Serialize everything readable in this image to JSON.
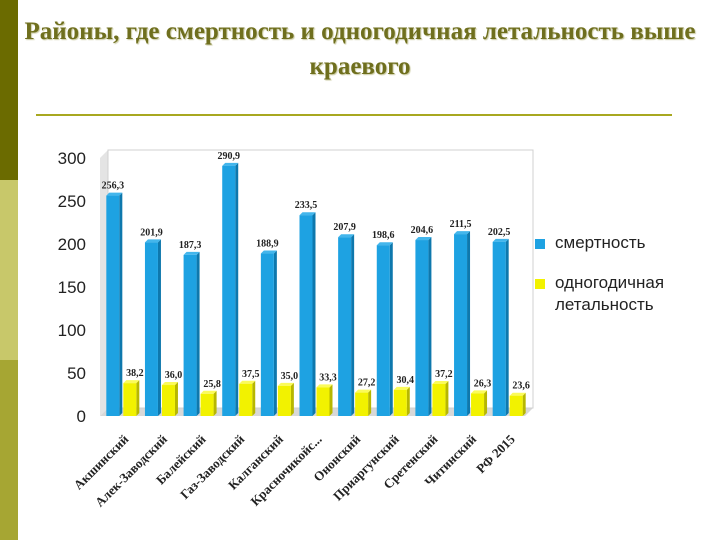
{
  "title": "Районы, где смертность и одногодичная летальность выше краевого",
  "colors": {
    "mortality": "#1ea2e2",
    "lethality": "#f2f200"
  },
  "chart_data": {
    "type": "bar",
    "title": "",
    "xlabel": "",
    "ylabel": "",
    "ylim": [
      0,
      300
    ],
    "yticks": [
      0,
      50,
      100,
      150,
      200,
      250,
      300
    ],
    "grid": false,
    "legend_position": "right",
    "categories": [
      "Акшинский",
      "Алек-Заводский",
      "Балейский",
      "Газ-Заводский",
      "Калганский",
      "Красночикойс...",
      "Ононский",
      "Приаргунский",
      "Сретенский",
      "Читинский",
      "РФ 2015"
    ],
    "series": [
      {
        "name": "смертность",
        "values": [
          256.3,
          201.9,
          187.3,
          290.9,
          188.9,
          233.5,
          207.9,
          198.6,
          204.6,
          211.5,
          202.5
        ],
        "labels": [
          "256,3",
          "201,9",
          "187,3",
          "290,9",
          "188,9",
          "233,5",
          "207,9",
          "198,6",
          "204,6",
          "211,5",
          "202,5"
        ]
      },
      {
        "name": "одногодичная летальность",
        "values": [
          38.2,
          36.0,
          25.8,
          37.5,
          35.0,
          33.3,
          27.2,
          30.4,
          37.2,
          26.3,
          23.6
        ],
        "labels": [
          "38,2",
          "36,0",
          "25,8",
          "37,5",
          "35,0",
          "33,3",
          "27,2",
          "30,4",
          "37,2",
          "26,3",
          "23,6"
        ]
      }
    ]
  }
}
